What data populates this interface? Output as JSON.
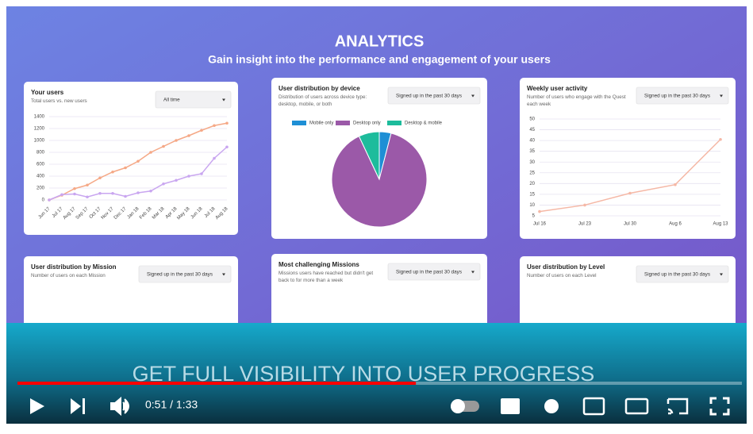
{
  "header": {
    "title": "ANALYTICS",
    "subtitle": "Gain insight into the performance and engagement of your users"
  },
  "cards": [
    {
      "title": "Your users",
      "subtitle": "Total users vs. new users",
      "dropdown": "All time",
      "chart": {
        "type": "line",
        "categories": [
          "Jun 17",
          "Jul 17",
          "Aug 17",
          "Sep 17",
          "Oct 17",
          "Nov 17",
          "Dec 17",
          "Jan 18",
          "Feb 18",
          "Mar 18",
          "Apr 18",
          "May 18",
          "Jun 18",
          "Jul 18",
          "Aug 18"
        ],
        "series": [
          {
            "color": "#f5a886",
            "values": [
              0,
              80,
              190,
              250,
              370,
              470,
              540,
              650,
              800,
              900,
              1000,
              1080,
              1170,
              1250,
              1290
            ]
          },
          {
            "color": "#c9a6f0",
            "values": [
              0,
              90,
              100,
              50,
              110,
              110,
              60,
              120,
              150,
              270,
              330,
              400,
              440,
              700,
              890
            ]
          }
        ],
        "ylim": [
          0,
          1400
        ],
        "yticks": [
          0,
          200,
          400,
          600,
          800,
          1000,
          1200,
          1400
        ],
        "grid": true
      }
    },
    {
      "title": "User distribution by device",
      "subtitle": "Distribution of users across device type: desktop, mobile, or both",
      "dropdown": "Signed up in the past 30 days",
      "chart": {
        "type": "pie",
        "series": [
          {
            "name": "Mobile only",
            "color": "#1e8fd5",
            "value": 4
          },
          {
            "name": "Desktop only",
            "color": "#9b59a8",
            "value": 89
          },
          {
            "name": "Desktop & mobile",
            "color": "#1dbc9c",
            "value": 7
          }
        ]
      }
    },
    {
      "title": "Weekly user activity",
      "subtitle": "Number of users who engage with the Quest each week",
      "dropdown": "Signed up in the past 30 days",
      "chart": {
        "type": "line",
        "categories": [
          "Jul 16",
          "Jul 23",
          "Jul 30",
          "Aug 6",
          "Aug 13"
        ],
        "series": [
          {
            "color": "#f5b8a6",
            "values": [
              7,
              10,
              15.5,
              19.5,
              40.5
            ]
          }
        ],
        "ylim": [
          5,
          50
        ],
        "yticks": [
          5,
          10,
          15,
          20,
          25,
          30,
          35,
          40,
          45,
          50
        ],
        "grid": true
      }
    },
    {
      "title": "User distribution by Mission",
      "subtitle": "Number of users on each Mission",
      "dropdown": "Signed up in the past 30 days"
    },
    {
      "title": "Most challenging Missions",
      "subtitle": "Missions users have reached but didn't get back to for more than a week",
      "dropdown": "Signed up in the past 30 days"
    },
    {
      "title": "User distribution by Level",
      "subtitle": "Number of users on each Level",
      "dropdown": "Signed up in the past 30 days"
    }
  ],
  "caption": "GET FULL VISIBILITY INTO USER PROGRESS",
  "player": {
    "time": "0:51 / 1:33",
    "progress_percent": 55
  }
}
